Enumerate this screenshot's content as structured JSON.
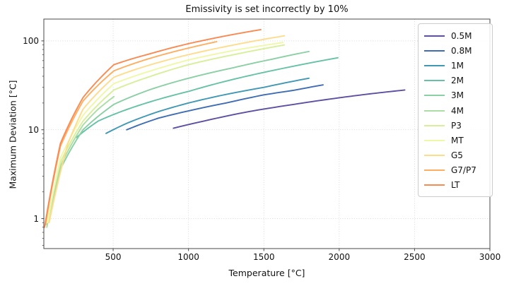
{
  "figure": {
    "title": "Emissivity is set incorrectly by 10%",
    "background": "#ffffff",
    "spine_color": "#4a4a4a",
    "grid_color": "#d5d5d5",
    "text_color": "#111111"
  },
  "chart_data": {
    "type": "line",
    "title": "Emissivity is set incorrectly by 10%",
    "xlabel": "Temperature [°C]",
    "ylabel": "Maximum Deviation [°C]",
    "x_scale": "linear",
    "y_scale": "log",
    "xlim": [
      40,
      3000
    ],
    "ylim": [
      0.46,
      176
    ],
    "xticks": [
      500,
      1000,
      1500,
      2000,
      2500,
      3000
    ],
    "yticks": [
      1,
      10,
      100
    ],
    "y_minor_ticks": [
      0.5,
      0.6,
      0.7,
      0.8,
      0.9,
      2,
      3,
      4,
      5,
      6,
      7,
      8,
      9,
      20,
      30,
      40,
      50,
      60,
      70,
      80,
      90
    ],
    "grid": "dotted, major ticks only",
    "legend_position": "upper right",
    "series": [
      {
        "name": "0.5M",
        "color": "#5e4fa2",
        "points": [
          [
            900,
            10.4
          ],
          [
            1100,
            12.5
          ],
          [
            1400,
            16.0
          ],
          [
            1700,
            19.3
          ],
          [
            2000,
            22.9
          ],
          [
            2200,
            25.3
          ],
          [
            2435,
            28.0
          ]
        ]
      },
      {
        "name": "0.8M",
        "color": "#3f6db4",
        "points": [
          [
            590,
            10.0
          ],
          [
            800,
            13.5
          ],
          [
            1000,
            16.3
          ],
          [
            1250,
            20.0
          ],
          [
            1500,
            24.7
          ],
          [
            1700,
            27.8
          ],
          [
            1893,
            32.0
          ]
        ]
      },
      {
        "name": "1M",
        "color": "#4198b5",
        "points": [
          [
            453,
            9.1
          ],
          [
            600,
            12.0
          ],
          [
            800,
            16.0
          ],
          [
            1000,
            20.0
          ],
          [
            1250,
            25.0
          ],
          [
            1500,
            30.0
          ],
          [
            1799,
            38.0
          ]
        ]
      },
      {
        "name": "2M",
        "color": "#66c2a5",
        "points": [
          [
            257,
            8.2
          ],
          [
            400,
            12.5
          ],
          [
            505,
            14.9
          ],
          [
            700,
            19.5
          ],
          [
            1000,
            27.0
          ],
          [
            1300,
            37.0
          ],
          [
            1600,
            48.0
          ],
          [
            1991,
            64.6
          ]
        ]
      },
      {
        "name": "3M",
        "color": "#8ad0a4",
        "points": [
          [
            60,
            0.85
          ],
          [
            150,
            3.6
          ],
          [
            300,
            10.0
          ],
          [
            505,
            19.3
          ],
          [
            750,
            28.5
          ],
          [
            1000,
            38.0
          ],
          [
            1300,
            50.0
          ],
          [
            1550,
            62.0
          ],
          [
            1799,
            76.0
          ]
        ]
      },
      {
        "name": "4M",
        "color": "#abdda4",
        "points": [
          [
            60,
            0.8
          ],
          [
            150,
            3.9
          ],
          [
            300,
            11.3
          ],
          [
            400,
            17.0
          ],
          [
            505,
            23.6
          ]
        ]
      },
      {
        "name": "P3",
        "color": "#d7ef9b",
        "points": [
          [
            60,
            0.9
          ],
          [
            150,
            4.3
          ],
          [
            300,
            12.5
          ],
          [
            505,
            28.0
          ],
          [
            750,
            40.0
          ],
          [
            1000,
            54.0
          ],
          [
            1300,
            70.0
          ],
          [
            1636,
            90.0
          ]
        ]
      },
      {
        "name": "MT",
        "color": "#eff8a6",
        "points": [
          [
            65,
            0.9
          ],
          [
            150,
            4.8
          ],
          [
            300,
            14.5
          ],
          [
            505,
            33.0
          ],
          [
            750,
            46.0
          ],
          [
            1000,
            61.0
          ],
          [
            1300,
            78.0
          ],
          [
            1626,
            96.0
          ]
        ]
      },
      {
        "name": "G5",
        "color": "#fedc8c",
        "points": [
          [
            75,
            0.9
          ],
          [
            200,
            7.0
          ],
          [
            300,
            17.0
          ],
          [
            505,
            39.0
          ],
          [
            750,
            54.0
          ],
          [
            1000,
            70.0
          ],
          [
            1300,
            90.0
          ],
          [
            1636,
            114.0
          ]
        ]
      },
      {
        "name": "G7/P7",
        "color": "#fdae61",
        "points": [
          [
            50,
            0.85
          ],
          [
            150,
            6.5
          ],
          [
            300,
            21.0
          ],
          [
            505,
            46.0
          ],
          [
            750,
            64.0
          ],
          [
            1000,
            83.0
          ],
          [
            1187,
            98.0
          ]
        ]
      },
      {
        "name": "LT",
        "color": "#f98a52",
        "points": [
          [
            45,
            0.8
          ],
          [
            150,
            7.0
          ],
          [
            300,
            23.0
          ],
          [
            505,
            54.0
          ],
          [
            750,
            72.0
          ],
          [
            1000,
            93.0
          ],
          [
            1250,
            114.0
          ],
          [
            1480,
            134.0
          ]
        ]
      }
    ]
  },
  "legend": {
    "entries": [
      {
        "label": "0.5M",
        "color": "#5e4fa2"
      },
      {
        "label": "0.8M",
        "color": "#3f6db4"
      },
      {
        "label": "1M",
        "color": "#4198b5"
      },
      {
        "label": "2M",
        "color": "#66c2a5"
      },
      {
        "label": "3M",
        "color": "#8ad0a4"
      },
      {
        "label": "4M",
        "color": "#abdda4"
      },
      {
        "label": "P3",
        "color": "#d7ef9b"
      },
      {
        "label": "MT",
        "color": "#eff8a6"
      },
      {
        "label": "G5",
        "color": "#fedc8c"
      },
      {
        "label": "G7/P7",
        "color": "#fdae61"
      },
      {
        "label": "LT",
        "color": "#f98a52"
      }
    ]
  }
}
